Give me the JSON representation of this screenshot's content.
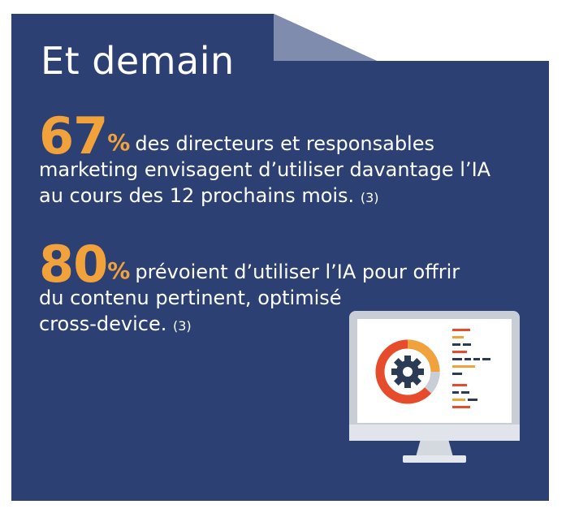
{
  "title": "Et demain",
  "stats": [
    {
      "number": "67",
      "percent_sign": "%",
      "line1": "des directeurs et responsables",
      "line2": "marketing envisagent d’utiliser davantage l’IA",
      "line3": "au cours des 12 prochains mois.",
      "ref": "(3)"
    },
    {
      "number": "80",
      "percent_sign": "%",
      "line1": "prévoient d’utiliser l’IA pour offrir",
      "line2": "du contenu pertinent, optimisé",
      "line3": "cross-device.",
      "ref": "(3)"
    }
  ],
  "colors": {
    "background": "#2c4073",
    "accent": "#f2a23b",
    "fold": "#7f8cad",
    "monitor_frame": "#c9cdd6"
  },
  "icons": [
    "computer-monitor-icon",
    "gear-icon",
    "donut-chart-icon"
  ]
}
